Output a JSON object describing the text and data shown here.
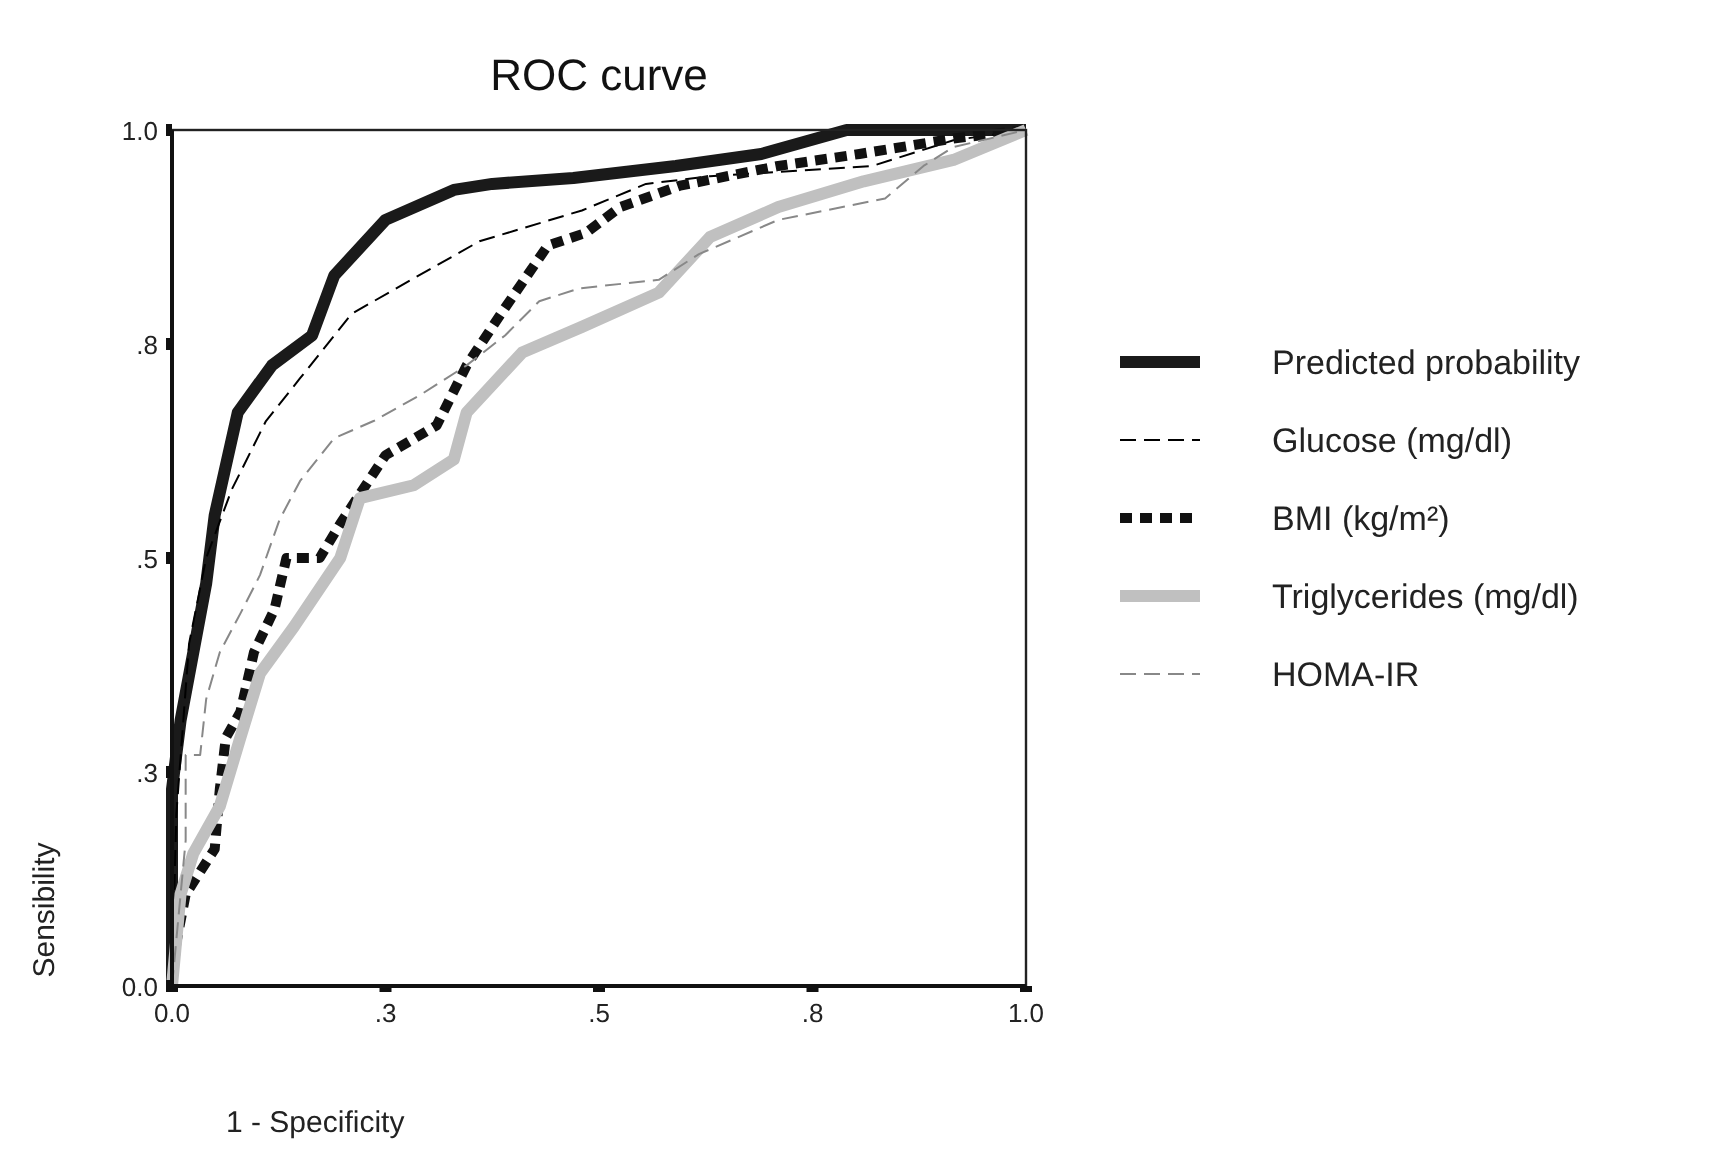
{
  "chart_data": {
    "type": "line",
    "title": "ROC curve",
    "xlabel": "1 - Specificity",
    "ylabel": "Sensibility",
    "xlim": [
      0,
      1
    ],
    "ylim": [
      0,
      1
    ],
    "xticks": [
      {
        "value": 0,
        "label": "0.0"
      },
      {
        "value": 0.25,
        "label": ".3"
      },
      {
        "value": 0.5,
        "label": ".5"
      },
      {
        "value": 0.75,
        "label": ".8"
      },
      {
        "value": 1,
        "label": "1.0"
      }
    ],
    "yticks": [
      {
        "value": 0,
        "label": "0.0"
      },
      {
        "value": 0.25,
        "label": ".3"
      },
      {
        "value": 0.5,
        "label": ".5"
      },
      {
        "value": 0.75,
        "label": ".8"
      },
      {
        "value": 1,
        "label": "1.0"
      }
    ],
    "grid": false,
    "legend": "right",
    "marker": "none",
    "series": [
      {
        "name": "Predicted probability",
        "color": "#1a1a1a",
        "line_style": "solid",
        "x": [
          0,
          0,
          0.01,
          0.025,
          0.04,
          0.05,
          0.077,
          0.117,
          0.164,
          0.19,
          0.25,
          0.33,
          0.375,
          0.47,
          0.59,
          0.69,
          0.79,
          1
        ],
        "values": [
          0,
          0.23,
          0.31,
          0.39,
          0.47,
          0.55,
          0.67,
          0.725,
          0.76,
          0.83,
          0.895,
          0.93,
          0.937,
          0.944,
          0.958,
          0.972,
          1,
          1
        ]
      },
      {
        "name": "Glucose (mg/dl)",
        "color": "#000000",
        "line_style": "dashed",
        "x": [
          0,
          0.005,
          0.02,
          0.04,
          0.07,
          0.11,
          0.15,
          0.21,
          0.28,
          0.36,
          0.48,
          0.555,
          0.63,
          0.82,
          0.915,
          1
        ],
        "values": [
          0,
          0.2,
          0.4,
          0.5,
          0.58,
          0.66,
          0.71,
          0.785,
          0.825,
          0.87,
          0.906,
          0.937,
          0.946,
          0.958,
          0.988,
          1
        ]
      },
      {
        "name": "BMI (kg/m²)",
        "color": "#111111",
        "line_style": "dotted",
        "x": [
          0,
          0.005,
          0.016,
          0.05,
          0.056,
          0.063,
          0.08,
          0.096,
          0.12,
          0.134,
          0.173,
          0.197,
          0.25,
          0.31,
          0.345,
          0.385,
          0.44,
          0.485,
          0.525,
          0.595,
          0.71,
          0.805,
          0.915,
          1
        ],
        "values": [
          0,
          0.05,
          0.107,
          0.16,
          0.23,
          0.29,
          0.32,
          0.39,
          0.44,
          0.5,
          0.5,
          0.54,
          0.62,
          0.655,
          0.725,
          0.785,
          0.865,
          0.88,
          0.91,
          0.935,
          0.958,
          0.972,
          0.99,
          1
        ]
      },
      {
        "name": "Triglycerides (mg/dl)",
        "color": "#c0c0c0",
        "line_style": "solid",
        "x": [
          0,
          0.01,
          0.025,
          0.056,
          0.08,
          0.103,
          0.143,
          0.197,
          0.22,
          0.283,
          0.33,
          0.345,
          0.41,
          0.48,
          0.57,
          0.63,
          0.71,
          0.81,
          0.915,
          1
        ],
        "values": [
          0,
          0.107,
          0.155,
          0.21,
          0.29,
          0.365,
          0.42,
          0.5,
          0.57,
          0.585,
          0.615,
          0.67,
          0.74,
          0.77,
          0.81,
          0.875,
          0.91,
          0.94,
          0.965,
          1
        ]
      },
      {
        "name": "HOMA-IR",
        "color": "#888888",
        "line_style": "dashed",
        "x": [
          0,
          0.016,
          0.016,
          0.033,
          0.04,
          0.056,
          0.08,
          0.103,
          0.126,
          0.15,
          0.19,
          0.236,
          0.29,
          0.345,
          0.39,
          0.43,
          0.477,
          0.57,
          0.617,
          0.71,
          0.835,
          0.88,
          0.915,
          1
        ],
        "values": [
          0,
          0.17,
          0.27,
          0.27,
          0.335,
          0.39,
          0.435,
          0.48,
          0.545,
          0.59,
          0.64,
          0.66,
          0.69,
          0.725,
          0.76,
          0.8,
          0.815,
          0.825,
          0.855,
          0.895,
          0.92,
          0.958,
          0.98,
          1
        ]
      }
    ]
  }
}
